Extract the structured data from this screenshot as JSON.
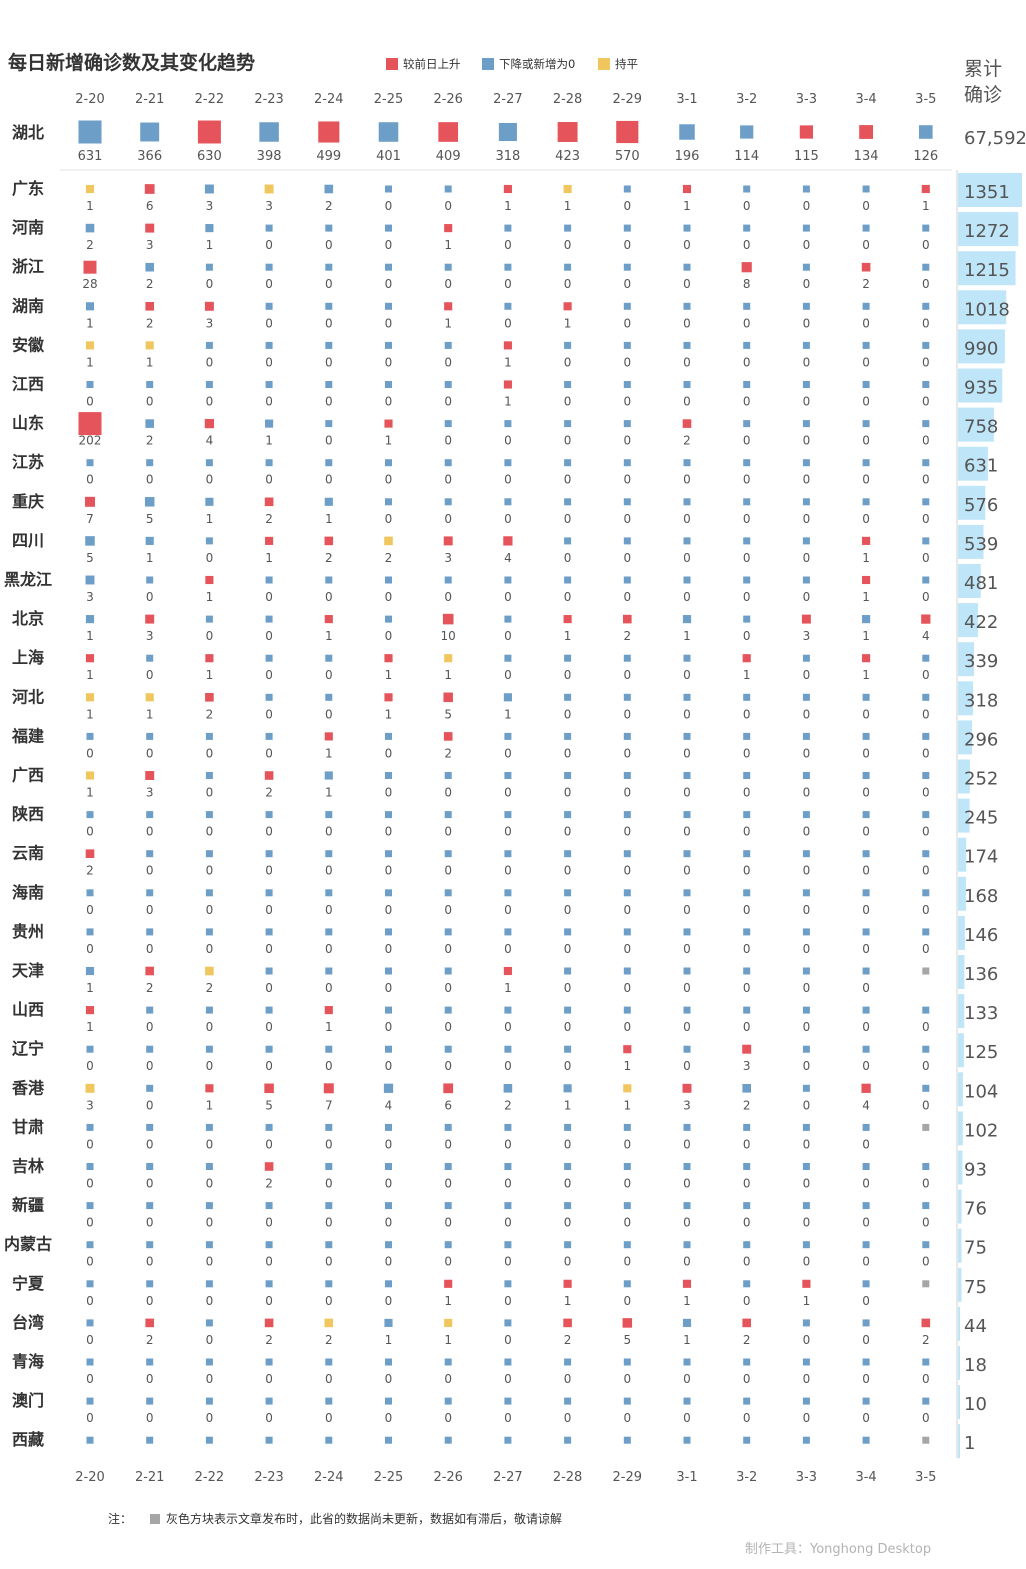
{
  "title": "每日新增确诊数及其变化趋势",
  "legend": [
    {
      "label": "较前日上升",
      "color": "#e5545b"
    },
    {
      "label": "下降或新增为0",
      "color": "#6d9ec8"
    },
    {
      "label": "持平",
      "color": "#f0c75e"
    }
  ],
  "cumulative_header": [
    "累计",
    "确诊"
  ],
  "note_prefix": "注：",
  "note_text": "灰色方块表示文章发布时，此省的数据尚未更新，数据如有滞后，敬请谅解",
  "credit": "制作工具：Yonghong Desktop",
  "colors": {
    "up": "#e5545b",
    "down": "#6d9ec8",
    "flat": "#f0c75e",
    "gray": "#a6a6a6",
    "bar": "#bfe6f8"
  },
  "chart_data": {
    "type": "heatmap",
    "dates": [
      "2-20",
      "2-21",
      "2-22",
      "2-23",
      "2-24",
      "2-25",
      "2-26",
      "2-27",
      "2-28",
      "2-29",
      "3-1",
      "3-2",
      "3-3",
      "3-4",
      "3-5"
    ],
    "status_codes": {
      "U": "较前日上升",
      "D": "下降或新增为0",
      "F": "持平",
      "G": "数据尚未更新"
    },
    "provinces": [
      {
        "name": "湖北",
        "values": [
          631,
          366,
          630,
          398,
          499,
          401,
          409,
          318,
          423,
          570,
          196,
          114,
          115,
          134,
          126
        ],
        "status": "DDUDUDUDUUDDUUD",
        "total": "67,592"
      },
      {
        "name": "广东",
        "values": [
          1,
          6,
          3,
          3,
          2,
          0,
          0,
          1,
          1,
          0,
          1,
          0,
          0,
          0,
          1
        ],
        "status": "FUDFDDDUFDUDDDU",
        "total": "1351"
      },
      {
        "name": "河南",
        "values": [
          2,
          3,
          1,
          0,
          0,
          0,
          1,
          0,
          0,
          0,
          0,
          0,
          0,
          0,
          0
        ],
        "status": "DUDDDDUDDDDDDDD",
        "total": "1272"
      },
      {
        "name": "浙江",
        "values": [
          28,
          2,
          0,
          0,
          0,
          0,
          0,
          0,
          0,
          0,
          0,
          8,
          0,
          2,
          0
        ],
        "status": "UDDDDDDDDDDUDUD",
        "total": "1215"
      },
      {
        "name": "湖南",
        "values": [
          1,
          2,
          3,
          0,
          0,
          0,
          1,
          0,
          1,
          0,
          0,
          0,
          0,
          0,
          0
        ],
        "status": "DUUDDDUDUDDDDDD",
        "total": "1018"
      },
      {
        "name": "安徽",
        "values": [
          1,
          1,
          0,
          0,
          0,
          0,
          0,
          1,
          0,
          0,
          0,
          0,
          0,
          0,
          0
        ],
        "status": "FFDDDDDUDDDDDDD",
        "total": "990"
      },
      {
        "name": "江西",
        "values": [
          0,
          0,
          0,
          0,
          0,
          0,
          0,
          1,
          0,
          0,
          0,
          0,
          0,
          0,
          0
        ],
        "status": "DDDDDDDUDDDDDDD",
        "total": "935"
      },
      {
        "name": "山东",
        "values": [
          202,
          2,
          4,
          1,
          0,
          1,
          0,
          0,
          0,
          0,
          2,
          0,
          0,
          0,
          0
        ],
        "status": "UDUDDUDDDDUDDDD",
        "total": "758"
      },
      {
        "name": "江苏",
        "values": [
          0,
          0,
          0,
          0,
          0,
          0,
          0,
          0,
          0,
          0,
          0,
          0,
          0,
          0,
          0
        ],
        "status": "DDDDDDDDDDDDDDD",
        "total": "631"
      },
      {
        "name": "重庆",
        "values": [
          7,
          5,
          1,
          2,
          1,
          0,
          0,
          0,
          0,
          0,
          0,
          0,
          0,
          0,
          0
        ],
        "status": "UDDUDDDDDDDDDDD",
        "total": "576"
      },
      {
        "name": "四川",
        "values": [
          5,
          1,
          0,
          1,
          2,
          2,
          3,
          4,
          0,
          0,
          0,
          0,
          0,
          1,
          0
        ],
        "status": "DDDUUFUUDDDDDUD",
        "total": "539"
      },
      {
        "name": "黑龙江",
        "values": [
          3,
          0,
          1,
          0,
          0,
          0,
          0,
          0,
          0,
          0,
          0,
          0,
          0,
          1,
          0
        ],
        "status": "DDUDDDDDDDDDDUD",
        "total": "481"
      },
      {
        "name": "北京",
        "values": [
          1,
          3,
          0,
          0,
          1,
          0,
          10,
          0,
          1,
          2,
          1,
          0,
          3,
          1,
          4
        ],
        "status": "DUDDUDUDUUDDUDU",
        "total": "422"
      },
      {
        "name": "上海",
        "values": [
          1,
          0,
          1,
          0,
          0,
          1,
          1,
          0,
          0,
          0,
          0,
          1,
          0,
          1,
          0
        ],
        "status": "UDUDDUFDDDDUDUD",
        "total": "339"
      },
      {
        "name": "河北",
        "values": [
          1,
          1,
          2,
          0,
          0,
          1,
          5,
          1,
          0,
          0,
          0,
          0,
          0,
          0,
          0
        ],
        "status": "FFUDDUUDDDDDDDD",
        "total": "318"
      },
      {
        "name": "福建",
        "values": [
          0,
          0,
          0,
          0,
          1,
          0,
          2,
          0,
          0,
          0,
          0,
          0,
          0,
          0,
          0
        ],
        "status": "DDDDUDUDDDDDDDD",
        "total": "296"
      },
      {
        "name": "广西",
        "values": [
          1,
          3,
          0,
          2,
          1,
          0,
          0,
          0,
          0,
          0,
          0,
          0,
          0,
          0,
          0
        ],
        "status": "FUDUDDDDDDDDDDD",
        "total": "252"
      },
      {
        "name": "陕西",
        "values": [
          0,
          0,
          0,
          0,
          0,
          0,
          0,
          0,
          0,
          0,
          0,
          0,
          0,
          0,
          0
        ],
        "status": "DDDDDDDDDDDDDDD",
        "total": "245"
      },
      {
        "name": "云南",
        "values": [
          2,
          0,
          0,
          0,
          0,
          0,
          0,
          0,
          0,
          0,
          0,
          0,
          0,
          0,
          0
        ],
        "status": "UDDDDDDDDDDDDDD",
        "total": "174"
      },
      {
        "name": "海南",
        "values": [
          0,
          0,
          0,
          0,
          0,
          0,
          0,
          0,
          0,
          0,
          0,
          0,
          0,
          0,
          0
        ],
        "status": "DDDDDDDDDDDDDDD",
        "total": "168"
      },
      {
        "name": "贵州",
        "values": [
          0,
          0,
          0,
          0,
          0,
          0,
          0,
          0,
          0,
          0,
          0,
          0,
          0,
          0,
          0
        ],
        "status": "DDDDDDDDDDDDDDD",
        "total": "146"
      },
      {
        "name": "天津",
        "values": [
          1,
          2,
          2,
          0,
          0,
          0,
          0,
          1,
          0,
          0,
          0,
          0,
          0,
          0,
          null
        ],
        "status": "DUFDDDDUDDDDDDG",
        "total": "136"
      },
      {
        "name": "山西",
        "values": [
          1,
          0,
          0,
          0,
          1,
          0,
          0,
          0,
          0,
          0,
          0,
          0,
          0,
          0,
          0
        ],
        "status": "UDDDUDDDDDDDDDD",
        "total": "133"
      },
      {
        "name": "辽宁",
        "values": [
          0,
          0,
          0,
          0,
          0,
          0,
          0,
          0,
          0,
          1,
          0,
          3,
          0,
          0,
          0
        ],
        "status": "DDDDDDDDDUDUDDD",
        "total": "125"
      },
      {
        "name": "香港",
        "values": [
          3,
          0,
          1,
          5,
          7,
          4,
          6,
          2,
          1,
          1,
          3,
          2,
          0,
          4,
          0
        ],
        "status": "FDUUUDUDDFUDDUD",
        "total": "104"
      },
      {
        "name": "甘肃",
        "values": [
          0,
          0,
          0,
          0,
          0,
          0,
          0,
          0,
          0,
          0,
          0,
          0,
          0,
          0,
          null
        ],
        "status": "DDDDDDDDDDDDDDG",
        "total": "102"
      },
      {
        "name": "吉林",
        "values": [
          0,
          0,
          0,
          2,
          0,
          0,
          0,
          0,
          0,
          0,
          0,
          0,
          0,
          0,
          0
        ],
        "status": "DDDUDDDDDDDDDDD",
        "total": "93"
      },
      {
        "name": "新疆",
        "values": [
          0,
          0,
          0,
          0,
          0,
          0,
          0,
          0,
          0,
          0,
          0,
          0,
          0,
          0,
          0
        ],
        "status": "DDDDDDDDDDDDDDD",
        "total": "76"
      },
      {
        "name": "内蒙古",
        "values": [
          0,
          0,
          0,
          0,
          0,
          0,
          0,
          0,
          0,
          0,
          0,
          0,
          0,
          0,
          0
        ],
        "status": "DDDDDDDDDDDDDDD",
        "total": "75"
      },
      {
        "name": "宁夏",
        "values": [
          0,
          0,
          0,
          0,
          0,
          0,
          1,
          0,
          1,
          0,
          1,
          0,
          1,
          0,
          null
        ],
        "status": "DDDDDDUDUDUDUDG",
        "total": "75"
      },
      {
        "name": "台湾",
        "values": [
          0,
          2,
          0,
          2,
          2,
          1,
          1,
          0,
          2,
          5,
          1,
          2,
          0,
          0,
          2
        ],
        "status": "DUDUFDFDUUDUDDU",
        "total": "44"
      },
      {
        "name": "青海",
        "values": [
          0,
          0,
          0,
          0,
          0,
          0,
          0,
          0,
          0,
          0,
          0,
          0,
          0,
          0,
          0
        ],
        "status": "DDDDDDDDDDDDDDD",
        "total": "18"
      },
      {
        "name": "澳门",
        "values": [
          0,
          0,
          0,
          0,
          0,
          0,
          0,
          0,
          0,
          0,
          0,
          0,
          0,
          0,
          0
        ],
        "status": "DDDDDDDDDDDDDDD",
        "total": "10"
      },
      {
        "name": "西藏",
        "values": [
          null,
          null,
          null,
          null,
          null,
          null,
          null,
          null,
          null,
          null,
          null,
          null,
          null,
          null,
          null
        ],
        "status": "DDDDDDDDDDDDDDG",
        "total": "1"
      }
    ]
  }
}
